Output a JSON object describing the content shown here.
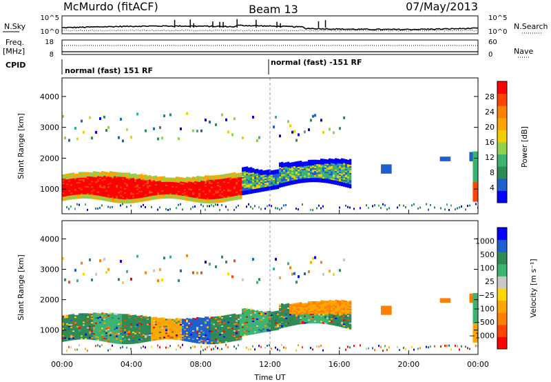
{
  "header": {
    "station": "McMurdo (fitACF)",
    "beam": "Beam 13",
    "date": "07/May/2013"
  },
  "housekeeping": {
    "nsky_label": "N.Sky",
    "nsearch_label": "N.Search",
    "noise_ticks_left": [
      "10^5",
      "10^0"
    ],
    "noise_ticks_right": [
      "10^5",
      "10^0"
    ],
    "freq_label": "Freq.",
    "freq_unit": "[MHz]",
    "freq_ticks": [
      "18",
      "8"
    ],
    "nave_label": "Nave",
    "nave_ticks": [
      "60",
      "0"
    ],
    "cpid_label": "CPID",
    "cpid_modes": [
      "normal (fast) 151 RF",
      "normal (fast) -151 RF"
    ]
  },
  "colors": {
    "power_scale": [
      "#0000ff",
      "#1f5fd0",
      "#2e8b57",
      "#3cb371",
      "#8fd14f",
      "#f0d000",
      "#ffa500",
      "#ff7f00",
      "#ff4500",
      "#ff0000"
    ],
    "velocity_scale": [
      "#0000ff",
      "#1f5fd0",
      "#2e8b57",
      "#3cb371",
      "#c8c8c8",
      "#ffd700",
      "#ffa500",
      "#ff7f00",
      "#ff4500",
      "#ff0000"
    ]
  },
  "chart_data": [
    {
      "type": "heatmap",
      "name": "power",
      "ylabel": "Slant Range [km]",
      "yticks": [
        "1000",
        "2000",
        "3000",
        "4000"
      ],
      "ylim": [
        200,
        4600
      ],
      "colorbar_label": "Power [dB]",
      "colorbar_ticks": [
        "4",
        "8",
        "12",
        "16",
        "20",
        "24",
        "28"
      ],
      "x_ticks": [
        "00:00",
        "04:00",
        "08:00",
        "12:00",
        "16:00",
        "20:00",
        "00:00"
      ],
      "features": [
        {
          "from_ut": 0.0,
          "to_ut": 10.3,
          "range_km": [
            600,
            1500
          ],
          "level": "strong",
          "note": "red band"
        },
        {
          "from_ut": 10.3,
          "to_ut": 16.5,
          "range_km": [
            800,
            1900
          ],
          "level": "weak",
          "note": "blue/green band"
        },
        {
          "from_ut": 23.6,
          "to_ut": 24.0,
          "range_km": [
            600,
            2300
          ],
          "level": "mixed"
        }
      ]
    },
    {
      "type": "heatmap",
      "name": "velocity",
      "ylabel": "Slant Range [km]",
      "yticks": [
        "1000",
        "2000",
        "3000",
        "4000"
      ],
      "ylim": [
        200,
        4600
      ],
      "colorbar_label": "Velocity [m s⁻¹]",
      "colorbar_ticks": [
        "1000",
        "500",
        "100",
        "25",
        "−25",
        "−100",
        "−500",
        "−1000"
      ],
      "x_ticks": [
        "00:00",
        "04:00",
        "08:00",
        "12:00",
        "16:00",
        "20:00",
        "00:00"
      ],
      "xlabel": "Time UT"
    }
  ]
}
